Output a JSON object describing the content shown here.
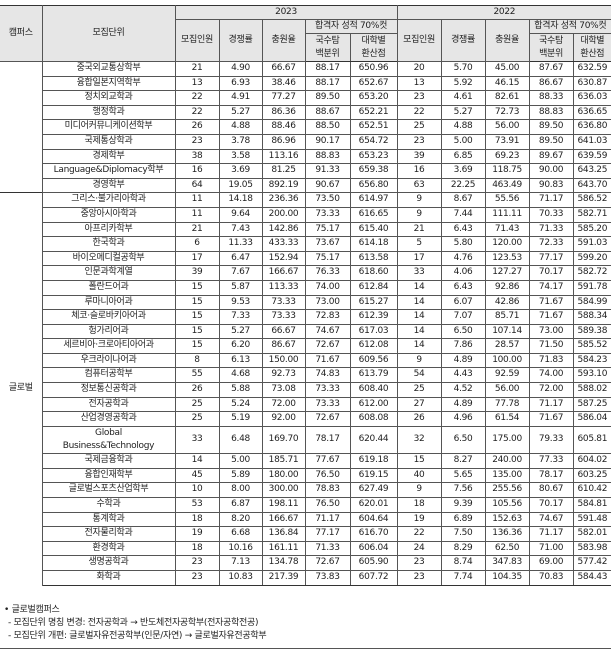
{
  "header": {
    "campus": "캠퍼스",
    "unit": "모집단위",
    "years": [
      "2023",
      "2022"
    ],
    "cols": [
      "모집인원",
      "경쟁률",
      "충원율"
    ],
    "cutoff_group": "합격자 성적 70%컷",
    "cutoff_cols": [
      "국수탐 백분위",
      "대학별 환산점"
    ]
  },
  "groups": [
    {
      "campus": "",
      "rows": [
        {
          "unit": "중국외교통상학부",
          "v": [
            "21",
            "4.90",
            "66.67",
            "88.17",
            "650.96",
            "20",
            "5.70",
            "45.00",
            "87.67",
            "632.59"
          ]
        },
        {
          "unit": "융합일본지역학부",
          "v": [
            "13",
            "6.93",
            "38.46",
            "88.17",
            "652.67",
            "13",
            "5.92",
            "46.15",
            "86.67",
            "630.87"
          ]
        },
        {
          "unit": "정치외교학과",
          "v": [
            "22",
            "4.91",
            "77.27",
            "89.50",
            "653.20",
            "23",
            "4.61",
            "82.61",
            "88.33",
            "636.03"
          ]
        },
        {
          "unit": "행정학과",
          "v": [
            "22",
            "5.27",
            "86.36",
            "88.67",
            "652.21",
            "22",
            "5.27",
            "72.73",
            "88.83",
            "636.65"
          ]
        },
        {
          "unit": "미디어커뮤니케이션학부",
          "v": [
            "26",
            "4.88",
            "88.46",
            "88.50",
            "652.51",
            "25",
            "4.88",
            "56.00",
            "89.50",
            "636.80"
          ]
        },
        {
          "unit": "국제통상학과",
          "v": [
            "23",
            "3.78",
            "86.96",
            "90.17",
            "654.72",
            "23",
            "5.00",
            "73.91",
            "89.50",
            "641.03"
          ]
        },
        {
          "unit": "경제학부",
          "v": [
            "38",
            "3.58",
            "113.16",
            "88.83",
            "653.23",
            "39",
            "6.85",
            "69.23",
            "89.67",
            "639.59"
          ]
        },
        {
          "unit": "Language&Diplomacy학부",
          "v": [
            "16",
            "3.69",
            "81.25",
            "91.33",
            "659.38",
            "16",
            "3.69",
            "118.75",
            "90.00",
            "643.25"
          ]
        },
        {
          "unit": "경영학부",
          "v": [
            "64",
            "19.05",
            "892.19",
            "90.67",
            "656.80",
            "63",
            "22.25",
            "463.49",
            "90.83",
            "643.70"
          ]
        }
      ]
    },
    {
      "campus": "글로벌",
      "rows": [
        {
          "unit": "그리스·불가리아학과",
          "v": [
            "11",
            "14.18",
            "236.36",
            "73.50",
            "614.97",
            "9",
            "8.67",
            "55.56",
            "71.17",
            "586.52"
          ]
        },
        {
          "unit": "중앙아시아학과",
          "v": [
            "11",
            "9.64",
            "200.00",
            "73.33",
            "616.65",
            "9",
            "7.44",
            "111.11",
            "70.33",
            "582.71"
          ]
        },
        {
          "unit": "아프리카학부",
          "v": [
            "21",
            "7.43",
            "142.86",
            "75.17",
            "615.40",
            "21",
            "6.43",
            "71.43",
            "71.33",
            "585.20"
          ]
        },
        {
          "unit": "한국학과",
          "v": [
            "6",
            "11.33",
            "433.33",
            "73.67",
            "614.18",
            "5",
            "5.80",
            "120.00",
            "72.33",
            "591.03"
          ]
        },
        {
          "unit": "바이오메디컬공학부",
          "v": [
            "17",
            "6.47",
            "152.94",
            "75.17",
            "613.58",
            "17",
            "4.76",
            "123.53",
            "77.17",
            "599.20"
          ]
        },
        {
          "unit": "인문과학계열",
          "v": [
            "39",
            "7.67",
            "166.67",
            "76.33",
            "618.60",
            "33",
            "4.06",
            "127.27",
            "70.17",
            "582.72"
          ]
        },
        {
          "unit": "폴란드어과",
          "v": [
            "15",
            "5.87",
            "113.33",
            "74.00",
            "612.84",
            "14",
            "6.43",
            "92.86",
            "74.17",
            "591.78"
          ]
        },
        {
          "unit": "루마니아어과",
          "v": [
            "15",
            "9.53",
            "73.33",
            "73.00",
            "615.27",
            "14",
            "6.07",
            "42.86",
            "71.67",
            "584.99"
          ]
        },
        {
          "unit": "체코·슬로바키아어과",
          "v": [
            "15",
            "7.33",
            "73.33",
            "72.83",
            "612.39",
            "14",
            "7.07",
            "85.71",
            "71.67",
            "588.34"
          ]
        },
        {
          "unit": "헝가리어과",
          "v": [
            "15",
            "5.27",
            "66.67",
            "74.67",
            "617.03",
            "14",
            "6.50",
            "107.14",
            "73.00",
            "589.38"
          ]
        },
        {
          "unit": "세르비아·크로아티아어과",
          "v": [
            "15",
            "6.20",
            "86.67",
            "72.67",
            "612.08",
            "14",
            "7.86",
            "28.57",
            "71.50",
            "585.52"
          ]
        },
        {
          "unit": "우크라이나어과",
          "v": [
            "8",
            "6.13",
            "150.00",
            "71.67",
            "609.56",
            "9",
            "4.89",
            "100.00",
            "71.83",
            "584.23"
          ]
        },
        {
          "unit": "컴퓨터공학부",
          "v": [
            "55",
            "4.68",
            "92.73",
            "74.83",
            "613.79",
            "54",
            "4.43",
            "92.59",
            "74.00",
            "593.10"
          ]
        },
        {
          "unit": "정보통신공학과",
          "v": [
            "26",
            "5.88",
            "73.08",
            "73.33",
            "608.40",
            "25",
            "4.52",
            "56.00",
            "72.00",
            "588.02"
          ]
        },
        {
          "unit": "전자공학과",
          "v": [
            "25",
            "5.24",
            "72.00",
            "73.33",
            "612.00",
            "27",
            "4.89",
            "77.78",
            "71.17",
            "587.25"
          ]
        },
        {
          "unit": "산업경영공학과",
          "v": [
            "25",
            "5.19",
            "92.00",
            "72.67",
            "608.08",
            "26",
            "4.96",
            "61.54",
            "71.67",
            "586.04"
          ]
        },
        {
          "unit": "Global Business&Technology",
          "v": [
            "33",
            "6.48",
            "169.70",
            "78.17",
            "620.44",
            "32",
            "6.50",
            "175.00",
            "79.33",
            "605.81"
          ]
        },
        {
          "unit": "국제금융학과",
          "v": [
            "14",
            "5.00",
            "185.71",
            "77.67",
            "619.18",
            "15",
            "8.27",
            "240.00",
            "77.33",
            "604.02"
          ]
        },
        {
          "unit": "융합인재학부",
          "v": [
            "45",
            "5.89",
            "180.00",
            "76.50",
            "619.15",
            "40",
            "5.65",
            "135.00",
            "78.17",
            "603.25"
          ]
        },
        {
          "unit": "글로벌스포츠산업학부",
          "v": [
            "10",
            "8.00",
            "300.00",
            "78.83",
            "627.49",
            "9",
            "7.56",
            "255.56",
            "80.67",
            "610.42"
          ]
        },
        {
          "unit": "수학과",
          "v": [
            "53",
            "6.87",
            "198.11",
            "76.50",
            "620.01",
            "18",
            "9.39",
            "105.56",
            "70.17",
            "584.81"
          ]
        },
        {
          "unit": "통계학과",
          "v": [
            "18",
            "8.20",
            "166.67",
            "71.17",
            "604.64",
            "19",
            "6.89",
            "152.63",
            "74.67",
            "591.48"
          ]
        },
        {
          "unit": "전자물리학과",
          "v": [
            "19",
            "6.68",
            "136.84",
            "77.17",
            "616.70",
            "22",
            "7.50",
            "136.36",
            "71.17",
            "582.01"
          ]
        },
        {
          "unit": "환경학과",
          "v": [
            "18",
            "10.16",
            "161.11",
            "71.33",
            "606.04",
            "24",
            "8.29",
            "62.50",
            "71.00",
            "583.98"
          ]
        },
        {
          "unit": "생명공학과",
          "v": [
            "23",
            "7.13",
            "134.78",
            "72.67",
            "605.90",
            "23",
            "8.74",
            "347.83",
            "69.00",
            "577.42"
          ]
        },
        {
          "unit": "화학과",
          "v": [
            "23",
            "10.83",
            "217.39",
            "73.83",
            "607.72",
            "23",
            "7.74",
            "104.35",
            "70.83",
            "584.43"
          ]
        }
      ]
    }
  ],
  "notes": {
    "title": "• 글로벌캠퍼스",
    "items": [
      "- 모집단위 명칭 변경: 전자공학과 → 반도체전자공학부(전자공학전공)",
      "- 모집단위 개편: 글로벌자유전공학부(인문/자연) → 글로벌자유전공학부"
    ]
  }
}
